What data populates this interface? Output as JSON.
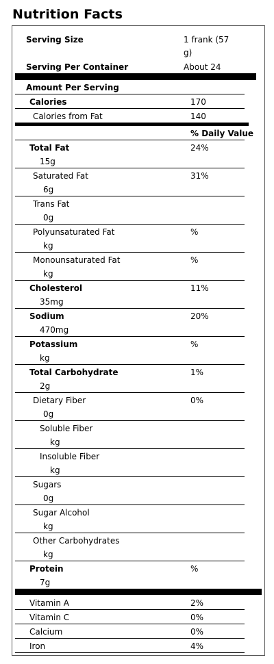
{
  "title": "Nutrition Facts",
  "serving": {
    "size_label": "Serving Size",
    "size_value_line1": "1 frank (57",
    "size_value_line2": "g)",
    "per_container_label": "Serving Per Container",
    "per_container_value": "About 24"
  },
  "amount_per_serving": "Amount Per Serving",
  "calories": {
    "label": "Calories",
    "value": "170",
    "from_fat_label": "Calories from Fat",
    "from_fat_value": "140"
  },
  "daily_value_header": "% Daily Value",
  "nutrients": [
    {
      "name": "Total Fat",
      "amount": "15g",
      "dv": "24%",
      "bold": true,
      "indent": 0
    },
    {
      "name": "Saturated Fat",
      "amount": "6g",
      "dv": "31%",
      "bold": false,
      "indent": 1
    },
    {
      "name": "Trans Fat",
      "amount": "0g",
      "dv": "",
      "bold": false,
      "indent": 1
    },
    {
      "name": "Polyunsaturated Fat",
      "amount": "kg",
      "dv": "%",
      "bold": false,
      "indent": 1
    },
    {
      "name": "Monounsaturated Fat",
      "amount": "kg",
      "dv": "%",
      "bold": false,
      "indent": 1
    },
    {
      "name": "Cholesterol",
      "amount": "35mg",
      "dv": "11%",
      "bold": true,
      "indent": 0
    },
    {
      "name": "Sodium",
      "amount": "470mg",
      "dv": "20%",
      "bold": true,
      "indent": 0
    },
    {
      "name": "Potassium",
      "amount": "kg",
      "dv": "%",
      "bold": true,
      "indent": 0
    },
    {
      "name": "Total Carbohydrate",
      "amount": "2g",
      "dv": "1%",
      "bold": true,
      "indent": 0
    },
    {
      "name": "Dietary Fiber",
      "amount": "0g",
      "dv": "0%",
      "bold": false,
      "indent": 1
    },
    {
      "name": "Soluble Fiber",
      "amount": "kg",
      "dv": "",
      "bold": false,
      "indent": 2
    },
    {
      "name": "Insoluble Fiber",
      "amount": "kg",
      "dv": "",
      "bold": false,
      "indent": 2
    },
    {
      "name": "Sugars",
      "amount": "0g",
      "dv": "",
      "bold": false,
      "indent": 1
    },
    {
      "name": "Sugar Alcohol",
      "amount": "kg",
      "dv": "",
      "bold": false,
      "indent": 1
    },
    {
      "name": "Other Carbohydrates",
      "amount": "kg",
      "dv": "",
      "bold": false,
      "indent": 1
    },
    {
      "name": "Protein",
      "amount": "7g",
      "dv": "%",
      "bold": true,
      "indent": 0
    }
  ],
  "vitamins": [
    {
      "name": "Vitamin A",
      "dv": "2%"
    },
    {
      "name": "Vitamin C",
      "dv": "0%"
    },
    {
      "name": "Calcium",
      "dv": "0%"
    },
    {
      "name": "Iron",
      "dv": "4%"
    }
  ]
}
